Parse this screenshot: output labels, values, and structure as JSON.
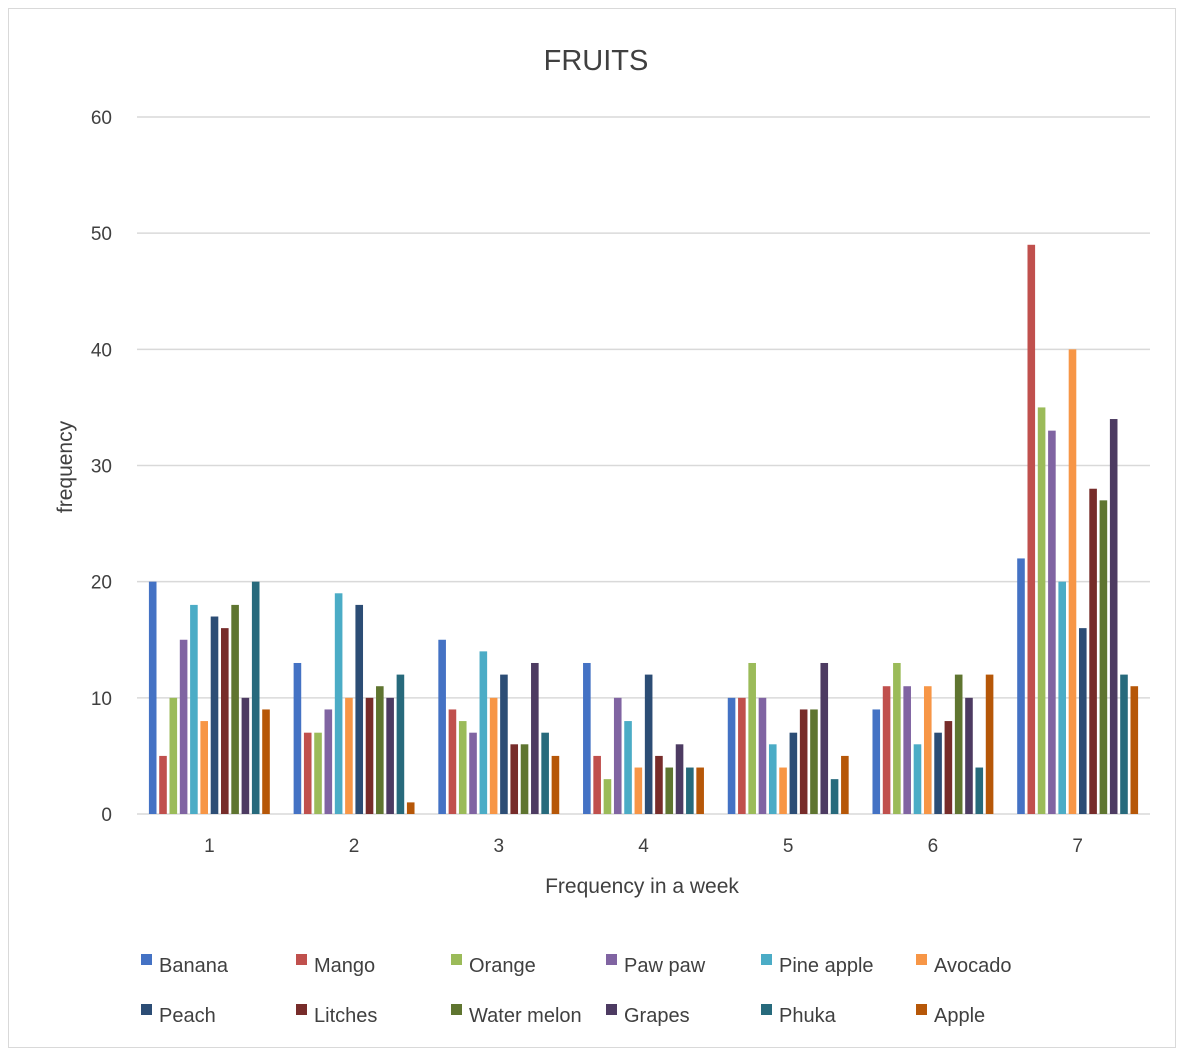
{
  "chart_data": {
    "type": "bar",
    "title": "FRUITS",
    "xlabel": "Frequency in a week",
    "ylabel": "frequency",
    "ylim": [
      0,
      60
    ],
    "yticks": [
      0,
      10,
      20,
      30,
      40,
      50,
      60
    ],
    "grid": true,
    "legend_position": "bottom",
    "categories": [
      "1",
      "2",
      "3",
      "4",
      "5",
      "6",
      "7"
    ],
    "series": [
      {
        "name": "Banana",
        "color": "#4472C4",
        "values": [
          20,
          13,
          15,
          13,
          10,
          9,
          22
        ]
      },
      {
        "name": "Mango",
        "color": "#C0504D",
        "values": [
          5,
          7,
          9,
          5,
          10,
          11,
          49
        ]
      },
      {
        "name": "Orange",
        "color": "#9BBB59",
        "values": [
          10,
          7,
          8,
          3,
          13,
          13,
          35
        ]
      },
      {
        "name": "Paw paw",
        "color": "#8064A2",
        "values": [
          15,
          9,
          7,
          10,
          10,
          11,
          33
        ]
      },
      {
        "name": "Pine apple",
        "color": "#4BACC6",
        "values": [
          18,
          19,
          14,
          8,
          6,
          6,
          20
        ]
      },
      {
        "name": "Avocado",
        "color": "#F79646",
        "values": [
          8,
          10,
          10,
          4,
          4,
          11,
          40
        ]
      },
      {
        "name": "Peach",
        "color": "#2C4D75",
        "values": [
          17,
          18,
          12,
          12,
          7,
          7,
          16
        ]
      },
      {
        "name": "Litches",
        "color": "#772C2A",
        "values": [
          16,
          10,
          6,
          5,
          9,
          8,
          28
        ]
      },
      {
        "name": "Water melon",
        "color": "#5F7530",
        "values": [
          18,
          11,
          6,
          4,
          9,
          12,
          27
        ]
      },
      {
        "name": "Grapes",
        "color": "#4D3B62",
        "values": [
          10,
          10,
          13,
          6,
          13,
          10,
          34
        ]
      },
      {
        "name": "Phuka",
        "color": "#276A7C",
        "values": [
          20,
          12,
          7,
          4,
          3,
          4,
          12
        ]
      },
      {
        "name": "Apple",
        "color": "#B65708",
        "values": [
          9,
          1,
          5,
          4,
          5,
          12,
          11
        ]
      }
    ]
  }
}
